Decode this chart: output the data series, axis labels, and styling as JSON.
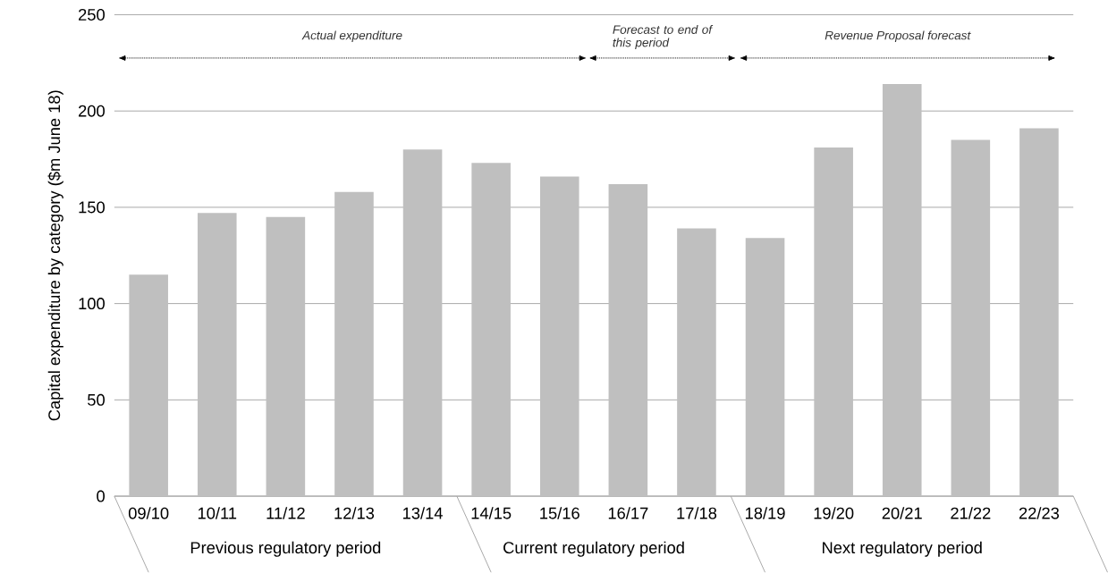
{
  "chart_data": {
    "type": "bar",
    "ylabel": "Capital expenditure by category  ($m June 18)",
    "categories": [
      "09/10",
      "10/11",
      "11/12",
      "12/13",
      "13/14",
      "14/15",
      "15/16",
      "16/17",
      "17/18",
      "18/19",
      "19/20",
      "20/21",
      "21/22",
      "22/23"
    ],
    "values": [
      115,
      147,
      145,
      158,
      180,
      173,
      166,
      162,
      139,
      134,
      181,
      214,
      185,
      191
    ],
    "color": "#bfbfbf",
    "ylim": [
      0,
      250
    ],
    "yticks": [
      0,
      50,
      100,
      150,
      200,
      250
    ],
    "grid": "y",
    "annotations": [
      "Actual expenditure",
      "Forecast to end of this period",
      "Revenue Proposal forecast",
      "Previous regulatory period",
      "Current regulatory period",
      "Next regulatory period"
    ]
  }
}
